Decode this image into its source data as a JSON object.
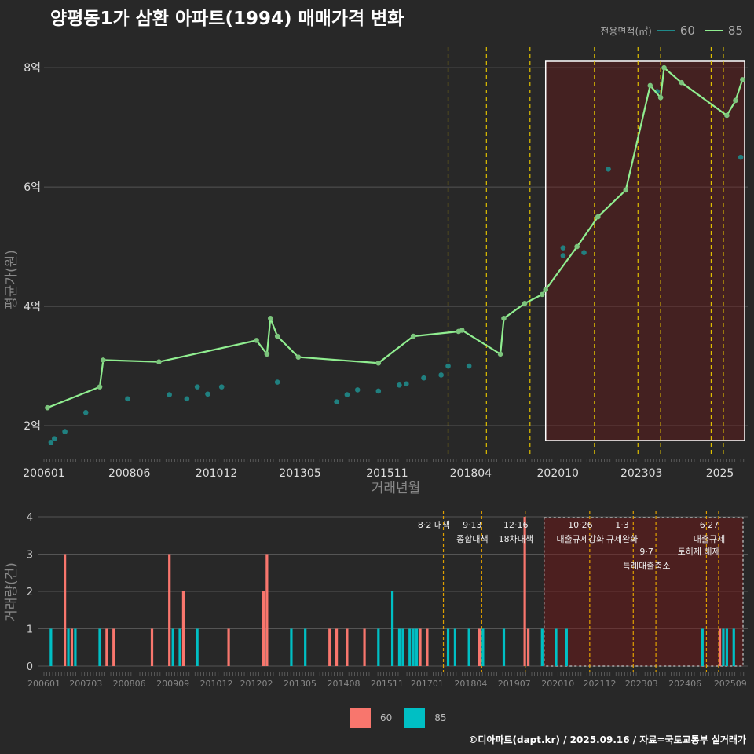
{
  "title": "양평동1가 삼환 아파트(1994) 매매가격 변화",
  "footer": "©디아파트(dapt.kr) / 2025.09.16 / 자료=국토교통부 실거래가",
  "legend": {
    "title": "전용면적(㎡)",
    "items": [
      {
        "label": "60",
        "color": "#1f8a8a"
      },
      {
        "label": "85",
        "color": "#90ee90"
      }
    ]
  },
  "bar_legend": [
    {
      "label": "60",
      "color": "#f8766d"
    },
    {
      "label": "85",
      "color": "#00bfc4"
    }
  ],
  "chart_data": [
    {
      "type": "line",
      "xlabel": "거래년월",
      "ylabel": "평균가(원)",
      "x_ticks": [
        "200601",
        "200806",
        "201012",
        "201305",
        "201511",
        "201804",
        "202010",
        "202303",
        "2025"
      ],
      "y_ticks": [
        "2억",
        "4억",
        "6억",
        "8억"
      ],
      "ylim": [
        1.5,
        8.45
      ],
      "series": [
        {
          "name": "85",
          "color": "#90ee90",
          "x": [
            2006.1,
            2007.6,
            2007.7,
            2009.3,
            2012.1,
            2012.4,
            2012.5,
            2012.7,
            2013.3,
            2015.6,
            2016.6,
            2017.9,
            2018.0,
            2019.1,
            2019.2,
            2019.8,
            2020.3,
            2020.4,
            2021.3,
            2021.9,
            2022.7,
            2023.4,
            2023.7,
            2023.8,
            2024.3,
            2025.6,
            2025.85,
            2026.05
          ],
          "y": [
            2.3,
            2.65,
            3.1,
            3.07,
            3.43,
            3.2,
            3.8,
            3.5,
            3.15,
            3.05,
            3.5,
            3.58,
            3.6,
            3.2,
            3.8,
            4.05,
            4.2,
            4.28,
            5.0,
            5.5,
            5.95,
            7.7,
            7.5,
            8.0,
            7.75,
            7.2,
            7.45,
            7.8
          ]
        },
        {
          "name": "60",
          "color": "#1f8a8a",
          "x": [
            2006.2,
            2006.3,
            2006.6,
            2007.2,
            2008.4,
            2009.6,
            2010.1,
            2010.4,
            2010.7,
            2011.1,
            2012.7,
            2014.4,
            2014.7,
            2015.0,
            2015.6,
            2016.2,
            2016.4,
            2016.9,
            2017.4,
            2017.6,
            2018.2,
            2020.9,
            2020.9,
            2021.5,
            2022.2,
            2023.6,
            2026.0
          ],
          "y": [
            1.72,
            1.78,
            1.9,
            2.22,
            2.45,
            2.52,
            2.45,
            2.65,
            2.53,
            2.65,
            2.73,
            2.4,
            2.52,
            2.6,
            2.58,
            2.68,
            2.7,
            2.8,
            2.85,
            3.0,
            3.0,
            4.85,
            4.98,
            4.9,
            6.3,
            7.6,
            6.5
          ]
        }
      ]
    },
    {
      "type": "bar",
      "xlabel": "",
      "ylabel": "거래량(건)",
      "ylim": [
        0,
        4
      ],
      "y_ticks": [
        "0",
        "1",
        "2",
        "3",
        "4"
      ],
      "x_ticks": [
        "200601",
        "200703",
        "200806",
        "200909",
        "201012",
        "201202",
        "201305",
        "201408",
        "201511",
        "201701",
        "201804",
        "201907",
        "202010",
        "202112",
        "202303",
        "202406",
        "202509"
      ],
      "series": [
        {
          "name": "60",
          "color": "#f8766d",
          "x": [
            2006.6,
            2006.8,
            2007.8,
            2008.0,
            2009.1,
            2009.6,
            2010.0,
            2011.3,
            2012.3,
            2012.4,
            2014.2,
            2014.4,
            2014.7,
            2015.2,
            2016.8,
            2017.0,
            2018.5,
            2019.8,
            2019.9,
            2025.4
          ],
          "y": [
            3,
            1,
            1,
            1,
            1,
            3,
            2,
            1,
            2,
            3,
            1,
            1,
            1,
            1,
            1,
            1,
            1,
            4,
            1,
            1
          ]
        },
        {
          "name": "85",
          "color": "#00bfc4",
          "x": [
            2006.2,
            2006.7,
            2006.9,
            2007.6,
            2009.7,
            2009.9,
            2010.4,
            2012.4,
            2013.1,
            2013.5,
            2015.6,
            2016.0,
            2016.2,
            2016.3,
            2016.5,
            2016.6,
            2016.7,
            2017.0,
            2017.6,
            2017.8,
            2018.2,
            2018.6,
            2019.2,
            2019.9,
            2020.3,
            2020.7,
            2021.0,
            2024.9,
            2025.5,
            2025.6,
            2025.8
          ],
          "y": [
            1,
            1,
            1,
            1,
            1,
            1,
            1,
            1,
            1,
            1,
            1,
            2,
            1,
            1,
            1,
            1,
            1,
            1,
            1,
            1,
            1,
            1,
            1,
            1,
            1,
            1,
            1,
            1,
            1,
            1,
            1
          ]
        }
      ]
    }
  ],
  "policy_events": [
    {
      "date": "8·2 대책",
      "x": 2017.6,
      "row": 0
    },
    {
      "date": "9·13",
      "x": 2018.7,
      "row": 0,
      "line2": "종합대책"
    },
    {
      "date": "12·16",
      "x": 2019.95,
      "row": 0,
      "line2": "18차대책"
    },
    {
      "date": "10·26",
      "x": 2021.8,
      "row": 0,
      "line2": "대출규제강화"
    },
    {
      "date": "1·3",
      "x": 2023.0,
      "row": 0,
      "line2": "규제완화"
    },
    {
      "date": "9·7",
      "x": 2023.7,
      "row": 1,
      "line2": "특례대출축소"
    },
    {
      "date": "6·27",
      "x": 2025.5,
      "row": 0,
      "line2": "대출규제"
    },
    {
      "date": "토허제 해제",
      "x": 2025.2,
      "row": 1
    }
  ],
  "vlines": [
    2017.6,
    2018.7,
    2019.95,
    2021.8,
    2023.05,
    2023.7,
    2025.15,
    2025.5
  ],
  "highlight": {
    "from": 2020.4,
    "to": 2026.2
  }
}
